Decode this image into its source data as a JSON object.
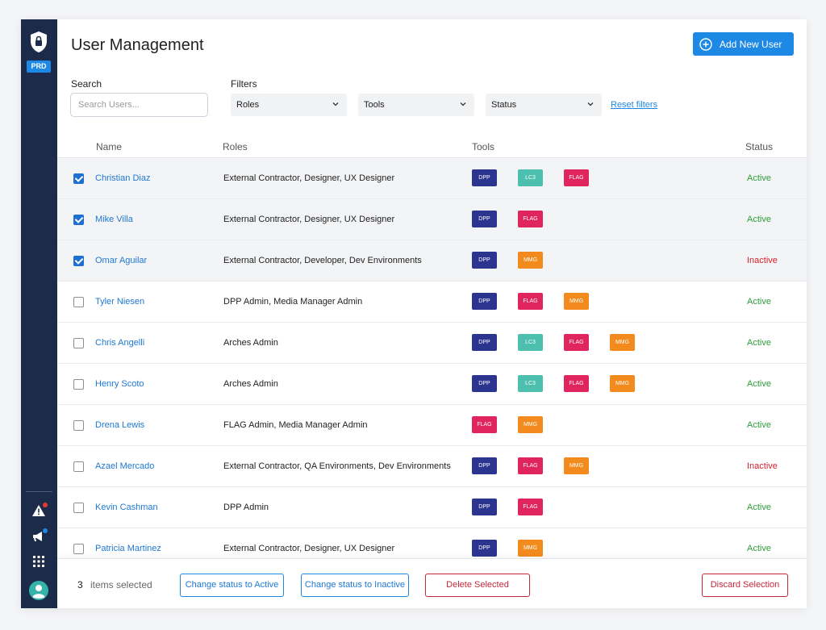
{
  "sidebar": {
    "env_badge": "PRD"
  },
  "header": {
    "title": "User Management",
    "add_button": "Add New User"
  },
  "filters": {
    "search_label": "Search",
    "search_placeholder": "Search Users...",
    "filters_label": "Filters",
    "roles": "Roles",
    "tools": "Tools",
    "status": "Status",
    "reset": "Reset filters"
  },
  "table": {
    "columns": [
      "Name",
      "Roles",
      "Tools",
      "Status"
    ],
    "rows": [
      {
        "name": "Christian Diaz",
        "roles": "External Contractor, Designer, UX Designer",
        "tools": [
          "DPP",
          "LC3",
          "FLAG"
        ],
        "status": "Active",
        "selected": true
      },
      {
        "name": "Mike Villa",
        "roles": "External Contractor, Designer, UX Designer",
        "tools": [
          "DPP",
          "FLAG"
        ],
        "status": "Active",
        "selected": true
      },
      {
        "name": "Omar Aguilar",
        "roles": "External Contractor, Developer, Dev Environments",
        "tools": [
          "DPP",
          "MMG"
        ],
        "status": "Inactive",
        "selected": true
      },
      {
        "name": "Tyler Niesen",
        "roles": "DPP Admin, Media Manager Admin",
        "tools": [
          "DPP",
          "FLAG",
          "MMG"
        ],
        "status": "Active",
        "selected": false
      },
      {
        "name": "Chris Angelli",
        "roles": "Arches Admin",
        "tools": [
          "DPP",
          "LC3",
          "FLAG",
          "MMG"
        ],
        "status": "Active",
        "selected": false
      },
      {
        "name": "Henry Scoto",
        "roles": "Arches Admin",
        "tools": [
          "DPP",
          "LC3",
          "FLAG",
          "MMG"
        ],
        "status": "Active",
        "selected": false
      },
      {
        "name": "Drena Lewis",
        "roles": "FLAG Admin, Media Manager Admin",
        "tools": [
          "FLAG",
          "MMG"
        ],
        "status": "Active",
        "selected": false
      },
      {
        "name": "Azael Mercado",
        "roles": "External Contractor, QA Environments, Dev Environments",
        "tools": [
          "DPP",
          "FLAG",
          "MMG"
        ],
        "status": "Inactive",
        "selected": false
      },
      {
        "name": "Kevin Cashman",
        "roles": "DPP Admin",
        "tools": [
          "DPP",
          "FLAG"
        ],
        "status": "Active",
        "selected": false
      },
      {
        "name": "Patricia Martinez",
        "roles": "External Contractor, Designer, UX Designer",
        "tools": [
          "DPP",
          "MMG"
        ],
        "status": "Active",
        "selected": false
      }
    ]
  },
  "footer": {
    "selected_count": "3",
    "selected_label": "items selected",
    "activate": "Change status to Active",
    "deactivate": "Change status to Inactive",
    "delete": "Delete Selected",
    "discard": "Discard Selection"
  },
  "colors": {
    "DPP": "#2b3590",
    "LC3": "#4dbfae",
    "FLAG": "#e0245e",
    "MMG": "#f28a1d",
    "Active": "#2e9d3a",
    "Inactive": "#d61f2b",
    "sidebar": "#1c2b4a",
    "accent": "#1e88e5"
  }
}
